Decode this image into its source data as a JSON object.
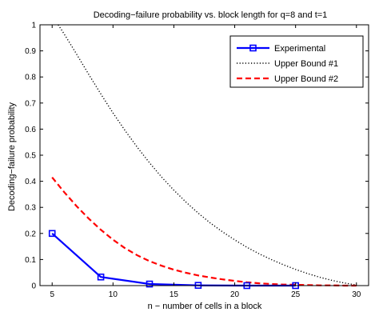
{
  "chart_data": {
    "type": "line",
    "title": "Decoding−failure probability vs. block length for q=8 and t=1",
    "xlabel": "n − number of cells in a block",
    "ylabel": "Decoding−failure probability",
    "xlim": [
      4,
      31
    ],
    "ylim": [
      0,
      1
    ],
    "xticks": [
      5,
      10,
      15,
      20,
      25,
      30
    ],
    "yticks": [
      0,
      0.1,
      0.2,
      0.3,
      0.4,
      0.5,
      0.6,
      0.7,
      0.8,
      0.9,
      1
    ],
    "grid": false,
    "legend_position": "top-right",
    "series": [
      {
        "name": "Experimental",
        "color": "#0000ff",
        "style": "solid-square-markers",
        "x": [
          5,
          9,
          13,
          17,
          21,
          25
        ],
        "y": [
          0.2,
          0.033,
          0.006,
          0.001,
          0.0,
          0.0
        ]
      },
      {
        "name": "Upper Bound #1",
        "color": "#000000",
        "style": "dotted",
        "x": [
          5.5,
          6,
          7,
          8,
          9,
          10,
          11,
          12,
          13,
          14,
          15,
          16,
          17,
          18,
          19,
          20,
          21,
          22,
          23,
          24,
          25,
          26,
          27,
          28,
          29,
          30
        ],
        "y": [
          1.0,
          0.964,
          0.888,
          0.81,
          0.735,
          0.662,
          0.594,
          0.53,
          0.471,
          0.416,
          0.366,
          0.32,
          0.278,
          0.24,
          0.206,
          0.175,
          0.147,
          0.122,
          0.1,
          0.08,
          0.062,
          0.046,
          0.032,
          0.02,
          0.01,
          0.002
        ]
      },
      {
        "name": "Upper Bound #2",
        "color": "#ff0000",
        "style": "dashed",
        "x": [
          5,
          6,
          7,
          8,
          9,
          10,
          11,
          12,
          13,
          14,
          15,
          16,
          17,
          18,
          19,
          20,
          21,
          22,
          23,
          24,
          25,
          26,
          27,
          28,
          29,
          30
        ],
        "y": [
          0.415,
          0.358,
          0.305,
          0.257,
          0.214,
          0.176,
          0.143,
          0.116,
          0.094,
          0.076,
          0.061,
          0.049,
          0.039,
          0.031,
          0.024,
          0.018,
          0.013,
          0.009,
          0.006,
          0.004,
          0.003,
          0.002,
          0.001,
          0.001,
          0.0,
          0.0
        ]
      }
    ]
  }
}
